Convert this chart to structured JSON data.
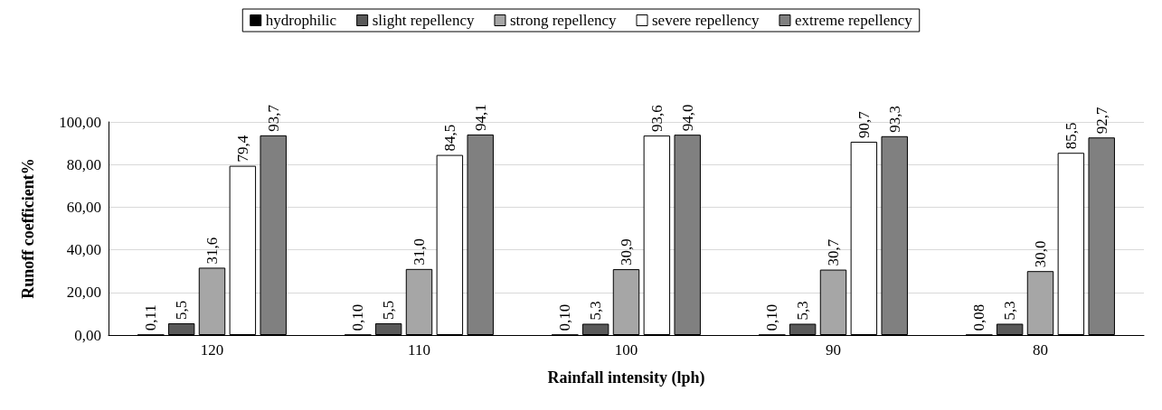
{
  "chart_data": {
    "type": "bar",
    "xlabel": "Rainfall intensity (lph)",
    "ylabel": "Runoff coefficient%",
    "categories": [
      "120",
      "110",
      "100",
      "90",
      "80"
    ],
    "series": [
      {
        "name": "hydrophilic",
        "color": "#000000",
        "values": [
          0.11,
          0.1,
          0.1,
          0.1,
          0.08
        ],
        "value_labels": [
          "0,11",
          "0,10",
          "0,10",
          "0,10",
          "0,08"
        ]
      },
      {
        "name": "slight repellency",
        "color": "#595959",
        "values": [
          5.5,
          5.5,
          5.3,
          5.3,
          5.3
        ],
        "value_labels": [
          "5,5",
          "5,5",
          "5,3",
          "5,3",
          "5,3"
        ]
      },
      {
        "name": "strong repellency",
        "color": "#a6a6a6",
        "values": [
          31.6,
          31.0,
          30.9,
          30.7,
          30.0
        ],
        "value_labels": [
          "31,6",
          "31,0",
          "30,9",
          "30,7",
          "30,0"
        ]
      },
      {
        "name": "severe repellency",
        "color": "#ffffff",
        "values": [
          79.4,
          84.5,
          93.6,
          90.7,
          85.5
        ],
        "value_labels": [
          "79,4",
          "84,5",
          "93,6",
          "90,7",
          "85,5"
        ]
      },
      {
        "name": "extreme repellency",
        "color": "#808080",
        "values": [
          93.7,
          94.1,
          94.0,
          93.3,
          92.7
        ],
        "value_labels": [
          "93,7",
          "94,1",
          "94,0",
          "93,3",
          "92,7"
        ]
      }
    ],
    "ylim": [
      0,
      100
    ],
    "yticks": [
      {
        "value": 0,
        "label": "0,00"
      },
      {
        "value": 20,
        "label": "20,00"
      },
      {
        "value": 40,
        "label": "40,00"
      },
      {
        "value": 60,
        "label": "60,00"
      },
      {
        "value": 80,
        "label": "80,00"
      },
      {
        "value": 100,
        "label": "100,00"
      }
    ],
    "grid": "y",
    "legend": "top"
  }
}
